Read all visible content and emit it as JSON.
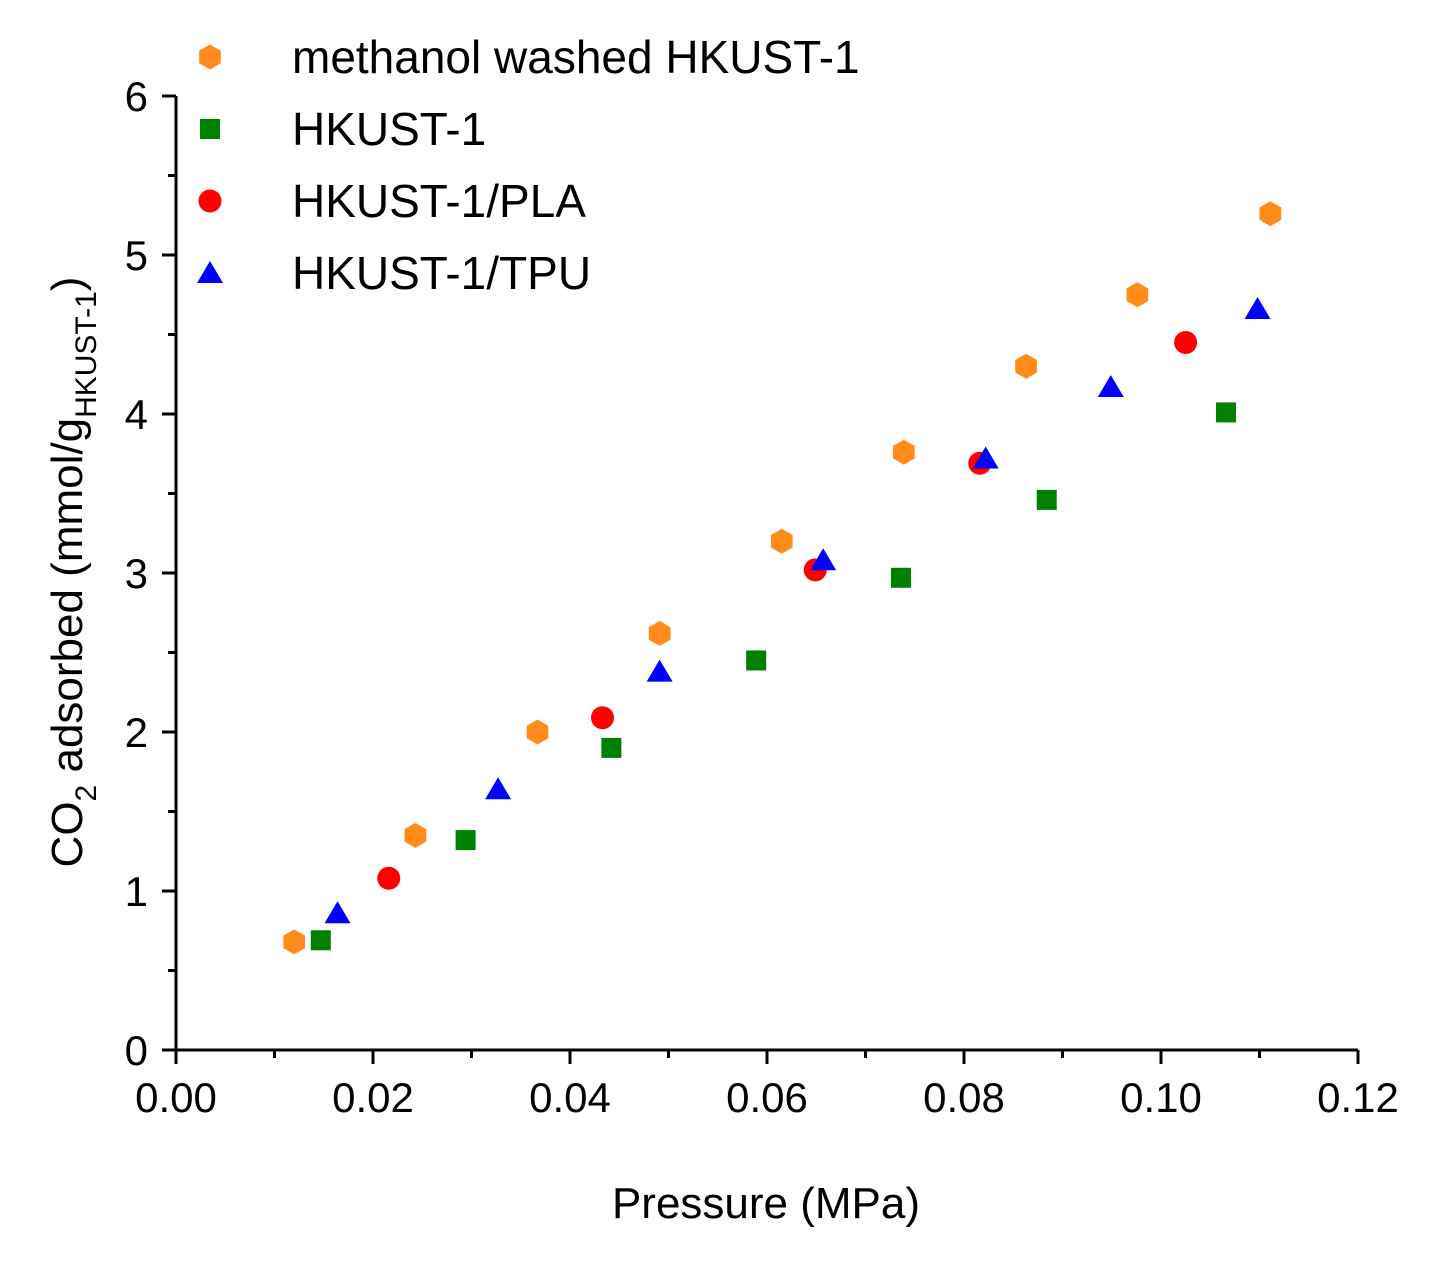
{
  "chart_data": {
    "type": "scatter",
    "title": "",
    "xlabel": "Pressure (MPa)",
    "ylabel": {
      "main": "CO",
      "sub1": "2",
      "mid": " adsorbed (mmol/g",
      "sub2": "HKUST-1",
      "end": ")"
    },
    "xlim": [
      0.0,
      0.12
    ],
    "ylim": [
      0,
      6
    ],
    "x_ticks": [
      "0.00",
      "0.02",
      "0.04",
      "0.06",
      "0.08",
      "0.10",
      "0.12"
    ],
    "y_ticks": [
      "0",
      "1",
      "2",
      "3",
      "4",
      "5",
      "6"
    ],
    "x_tick_values": [
      0.0,
      0.02,
      0.04,
      0.06,
      0.08,
      0.1,
      0.12
    ],
    "y_tick_values": [
      0,
      1,
      2,
      3,
      4,
      5,
      6
    ],
    "legend_position": "top-left",
    "series": [
      {
        "name": "methanol washed HKUST-1",
        "marker": "hexagon",
        "color": "#FF8C1A",
        "x": [
          0.012,
          0.0243,
          0.0367,
          0.0491,
          0.0615,
          0.0739,
          0.0863,
          0.0976,
          0.1111
        ],
        "y": [
          0.68,
          1.35,
          2.0,
          2.62,
          3.2,
          3.76,
          4.3,
          4.75,
          5.26
        ]
      },
      {
        "name": "HKUST-1",
        "marker": "square",
        "color": "#008000",
        "x": [
          0.0147,
          0.0294,
          0.0442,
          0.0589,
          0.0736,
          0.0884,
          0.1066
        ],
        "y": [
          0.69,
          1.32,
          1.9,
          2.45,
          2.97,
          3.46,
          4.01
        ]
      },
      {
        "name": "HKUST-1/PLA",
        "marker": "circle",
        "color": "#FF0000",
        "x": [
          0.0216,
          0.0433,
          0.0649,
          0.0816,
          0.1025
        ],
        "y": [
          1.08,
          2.09,
          3.02,
          3.69,
          4.45
        ]
      },
      {
        "name": "HKUST-1/TPU",
        "marker": "triangle",
        "color": "#0000FF",
        "x": [
          0.0164,
          0.0327,
          0.0491,
          0.0657,
          0.0822,
          0.0949,
          0.1098
        ],
        "y": [
          0.86,
          1.64,
          2.38,
          3.08,
          3.72,
          4.17,
          4.66
        ]
      }
    ]
  }
}
